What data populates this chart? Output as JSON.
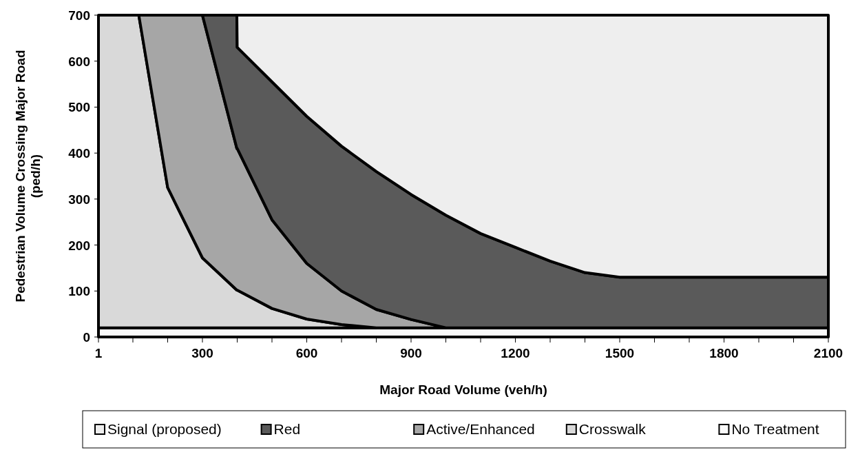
{
  "chart_data": {
    "type": "area",
    "stacked": true,
    "xlabel": "Major Road Volume (veh/h)",
    "ylabel": "Pedestrian Volume Crossing Major Road\n(ped/h)",
    "xlim": [
      1,
      2100
    ],
    "ylim": [
      0,
      700
    ],
    "xticks": [
      1,
      {
        "value": 100,
        "label": null
      },
      {
        "value": 200,
        "label": null
      },
      300,
      {
        "value": 400,
        "label": null
      },
      {
        "value": 500,
        "label": null
      },
      600,
      {
        "value": 700,
        "label": null
      },
      {
        "value": 800,
        "label": null
      },
      900,
      {
        "value": 1000,
        "label": null
      },
      {
        "value": 1100,
        "label": null
      },
      1200,
      {
        "value": 1300,
        "label": null
      },
      {
        "value": 1400,
        "label": null
      },
      1500,
      {
        "value": 1600,
        "label": null
      },
      {
        "value": 1700,
        "label": null
      },
      1800,
      {
        "value": 1900,
        "label": null
      },
      {
        "value": 2000,
        "label": null
      },
      2100
    ],
    "yticks": [
      0,
      100,
      200,
      300,
      400,
      500,
      600,
      700
    ],
    "grid": false,
    "legend": "bottom",
    "x": [
      1,
      117,
      200,
      300,
      399,
      400,
      500,
      600,
      700,
      800,
      900,
      1000,
      1100,
      1200,
      1300,
      1400,
      1500,
      2100
    ],
    "series": [
      {
        "name": "No Treatment",
        "color": "#fafafa",
        "values": [
          20,
          20,
          20,
          20,
          20,
          20,
          20,
          20,
          20,
          20,
          20,
          20,
          20,
          20,
          20,
          20,
          20,
          20
        ]
      },
      {
        "name": "Crosswalk",
        "color": "#d9d9d9",
        "values": [
          680,
          680,
          305,
          152,
          82,
          82,
          42,
          19,
          7,
          0,
          null,
          null,
          null,
          null,
          null,
          null,
          null,
          null
        ]
      },
      {
        "name": "Active/Enhanced",
        "color": "#a6a6a6",
        "values": [
          null,
          0,
          375,
          528,
          308,
          308,
          193,
          121,
          73,
          40,
          18,
          0,
          null,
          null,
          null,
          null,
          null,
          null
        ]
      },
      {
        "name": "Red",
        "color": "#5a5a5a",
        "values": [
          null,
          null,
          null,
          0,
          290,
          220,
          300,
          320,
          315,
          300,
          272,
          245,
          205,
          175,
          145,
          120,
          110,
          110
        ]
      },
      {
        "name": "Signal (proposed)",
        "color": "#eeeeee",
        "values": [
          null,
          null,
          null,
          null,
          0,
          70,
          145,
          220,
          285,
          340,
          390,
          435,
          475,
          505,
          535,
          560,
          570,
          570
        ]
      }
    ]
  }
}
